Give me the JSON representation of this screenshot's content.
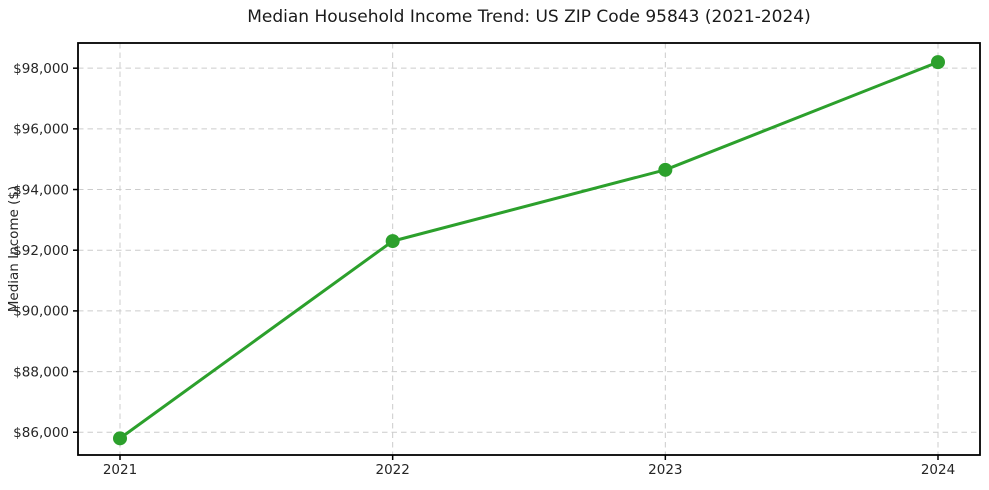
{
  "chart_data": {
    "type": "line",
    "title": "Median Household Income Trend: US ZIP Code 95843 (2021-2024)",
    "xlabel": "",
    "ylabel": "Median Income ($)",
    "categories": [
      "2021",
      "2022",
      "2023",
      "2024"
    ],
    "series": [
      {
        "name": "Median Household Income",
        "values": [
          85800,
          92300,
          94650,
          98200
        ]
      }
    ],
    "yticks": [
      86000,
      88000,
      90000,
      92000,
      94000,
      96000,
      98000
    ],
    "ytick_labels": [
      "$86,000",
      "$88,000",
      "$90,000",
      "$92,000",
      "$94,000",
      "$96,000",
      "$98,000"
    ],
    "ylim": [
      85250,
      98830
    ],
    "grid": true,
    "grid_style": "dashed",
    "legend_position": "none",
    "colors": {
      "line": "#2ca02c",
      "marker": "#2ca02c",
      "grid": "#cccccc",
      "axis": "#000000",
      "text": "#262626",
      "background": "#ffffff"
    },
    "marker_shape": "circle"
  }
}
